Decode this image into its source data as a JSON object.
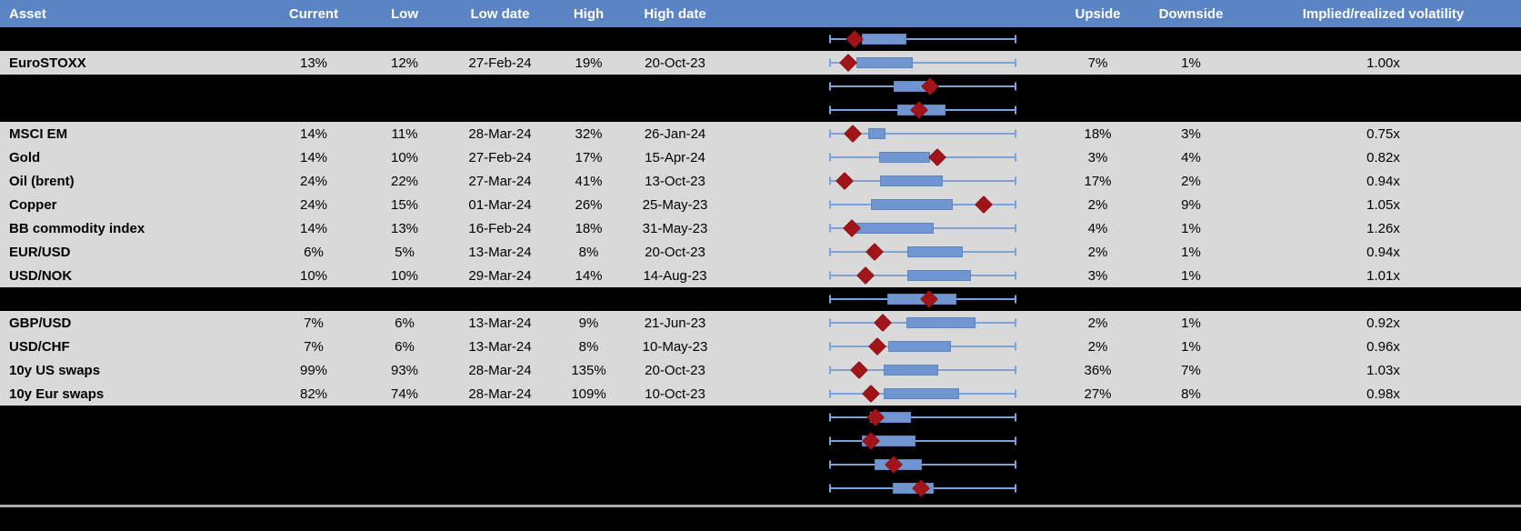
{
  "table": {
    "columns": [
      {
        "key": "asset",
        "label": "Asset"
      },
      {
        "key": "current",
        "label": "Current"
      },
      {
        "key": "low",
        "label": "Low"
      },
      {
        "key": "low_date",
        "label": "Low date"
      },
      {
        "key": "high",
        "label": "High"
      },
      {
        "key": "high_date",
        "label": "High date"
      },
      {
        "key": "range_chart",
        "label": ""
      },
      {
        "key": "upside",
        "label": "Upside"
      },
      {
        "key": "downside",
        "label": "Downside"
      },
      {
        "key": "vol",
        "label": "Implied/realized volatility"
      }
    ],
    "rows": [
      {
        "type": "chart",
        "boxplot": {
          "whisker_lo": 0,
          "box_lo": 17.2,
          "box_hi": 41.2,
          "marker": 13.2,
          "whisker_hi": 100
        }
      },
      {
        "type": "data",
        "asset": "EuroSTOXX",
        "current": "13%",
        "low": "12%",
        "low_date": "27-Feb-24",
        "high": "19%",
        "high_date": "20-Oct-23",
        "upside": "7%",
        "downside": "1%",
        "vol": "1.00x",
        "boxplot": {
          "whisker_lo": 0,
          "box_lo": 14.2,
          "box_hi": 44.6,
          "marker": 9.8,
          "whisker_hi": 100
        }
      },
      {
        "type": "chart",
        "boxplot": {
          "whisker_lo": 0,
          "box_lo": 34.3,
          "box_hi": 56.4,
          "marker": 53.9,
          "whisker_hi": 100
        }
      },
      {
        "type": "chart",
        "boxplot": {
          "whisker_lo": 0,
          "box_lo": 36.3,
          "box_hi": 62.3,
          "marker": 48.0,
          "whisker_hi": 100
        }
      },
      {
        "type": "data",
        "asset": "MSCI EM",
        "current": "14%",
        "low": "11%",
        "low_date": "28-Mar-24",
        "high": "32%",
        "high_date": "26-Jan-24",
        "upside": "18%",
        "downside": "3%",
        "vol": "0.75x",
        "boxplot": {
          "whisker_lo": 0,
          "box_lo": 20.6,
          "box_hi": 29.9,
          "marker": 12.3,
          "whisker_hi": 100
        }
      },
      {
        "type": "data",
        "asset": "Gold",
        "current": "14%",
        "low": "10%",
        "low_date": "27-Feb-24",
        "high": "17%",
        "high_date": "15-Apr-24",
        "upside": "3%",
        "downside": "4%",
        "vol": "0.82x",
        "boxplot": {
          "whisker_lo": 0,
          "box_lo": 26.5,
          "box_hi": 53.9,
          "marker": 57.8,
          "whisker_hi": 100
        }
      },
      {
        "type": "data",
        "asset": "Oil (brent)",
        "current": "24%",
        "low": "22%",
        "low_date": "27-Mar-24",
        "high": "41%",
        "high_date": "13-Oct-23",
        "upside": "17%",
        "downside": "2%",
        "vol": "0.94x",
        "boxplot": {
          "whisker_lo": 0,
          "box_lo": 27.0,
          "box_hi": 60.8,
          "marker": 7.8,
          "whisker_hi": 100
        }
      },
      {
        "type": "data",
        "asset": "Copper",
        "current": "24%",
        "low": "15%",
        "low_date": "01-Mar-24",
        "high": "26%",
        "high_date": "25-May-23",
        "upside": "2%",
        "downside": "9%",
        "vol": "1.05x",
        "boxplot": {
          "whisker_lo": 0,
          "box_lo": 22.1,
          "box_hi": 66.2,
          "marker": 82.8,
          "whisker_hi": 100
        }
      },
      {
        "type": "data",
        "asset": "BB commodity index",
        "current": "14%",
        "low": "13%",
        "low_date": "16-Feb-24",
        "high": "18%",
        "high_date": "31-May-23",
        "upside": "4%",
        "downside": "1%",
        "vol": "1.26x",
        "boxplot": {
          "whisker_lo": 0,
          "box_lo": 12.7,
          "box_hi": 55.9,
          "marker": 11.8,
          "whisker_hi": 100
        }
      },
      {
        "type": "data",
        "asset": "EUR/USD",
        "current": "6%",
        "low": "5%",
        "low_date": "13-Mar-24",
        "high": "8%",
        "high_date": "20-Oct-23",
        "upside": "2%",
        "downside": "1%",
        "vol": "0.94x",
        "boxplot": {
          "whisker_lo": 0,
          "box_lo": 41.7,
          "box_hi": 71.6,
          "marker": 24.0,
          "whisker_hi": 100
        }
      },
      {
        "type": "data",
        "asset": "USD/NOK",
        "current": "10%",
        "low": "10%",
        "low_date": "29-Mar-24",
        "high": "14%",
        "high_date": "14-Aug-23",
        "upside": "3%",
        "downside": "1%",
        "vol": "1.01x",
        "boxplot": {
          "whisker_lo": 0,
          "box_lo": 41.7,
          "box_hi": 76.0,
          "marker": 19.1,
          "whisker_hi": 100
        }
      },
      {
        "type": "chart",
        "boxplot": {
          "whisker_lo": 0,
          "box_lo": 30.9,
          "box_hi": 68.1,
          "marker": 53.4,
          "whisker_hi": 100
        }
      },
      {
        "type": "data",
        "asset": "GBP/USD",
        "current": "7%",
        "low": "6%",
        "low_date": "13-Mar-24",
        "high": "9%",
        "high_date": "21-Jun-23",
        "upside": "2%",
        "downside": "1%",
        "vol": "0.92x",
        "boxplot": {
          "whisker_lo": 0,
          "box_lo": 41.2,
          "box_hi": 78.4,
          "marker": 28.4,
          "whisker_hi": 100
        }
      },
      {
        "type": "data",
        "asset": "USD/CHF",
        "current": "7%",
        "low": "6%",
        "low_date": "13-Mar-24",
        "high": "8%",
        "high_date": "10-May-23",
        "upside": "2%",
        "downside": "1%",
        "vol": "0.96x",
        "boxplot": {
          "whisker_lo": 0,
          "box_lo": 31.4,
          "box_hi": 65.2,
          "marker": 25.5,
          "whisker_hi": 100
        }
      },
      {
        "type": "data",
        "asset": "10y US swaps",
        "current": "99%",
        "low": "93%",
        "low_date": "28-Mar-24",
        "high": "135%",
        "high_date": "20-Oct-23",
        "upside": "36%",
        "downside": "7%",
        "vol": "1.03x",
        "boxplot": {
          "whisker_lo": 0,
          "box_lo": 28.9,
          "box_hi": 58.3,
          "marker": 15.7,
          "whisker_hi": 100
        }
      },
      {
        "type": "data",
        "asset": "10y Eur swaps",
        "current": "82%",
        "low": "74%",
        "low_date": "28-Mar-24",
        "high": "109%",
        "high_date": "10-Oct-23",
        "upside": "27%",
        "downside": "8%",
        "vol": "0.98x",
        "boxplot": {
          "whisker_lo": 0,
          "box_lo": 28.9,
          "box_hi": 69.6,
          "marker": 22.1,
          "whisker_hi": 100
        }
      },
      {
        "type": "chart",
        "boxplot": {
          "whisker_lo": 0,
          "box_lo": 21.6,
          "box_hi": 43.6,
          "marker": 24.5,
          "whisker_hi": 100
        }
      },
      {
        "type": "chart",
        "boxplot": {
          "whisker_lo": 0,
          "box_lo": 17.2,
          "box_hi": 46.1,
          "marker": 22.1,
          "whisker_hi": 100
        }
      },
      {
        "type": "chart",
        "boxplot": {
          "whisker_lo": 0,
          "box_lo": 24.0,
          "box_hi": 49.5,
          "marker": 34.3,
          "whisker_hi": 100
        }
      },
      {
        "type": "chart",
        "boxplot": {
          "whisker_lo": 0,
          "box_lo": 33.8,
          "box_hi": 55.9,
          "marker": 49.0,
          "whisker_hi": 100
        }
      }
    ]
  },
  "colors": {
    "header_bg": "#5b84c4",
    "header_text": "#ffffff",
    "row_bg": "#d9d9d9",
    "black_bg": "#000000",
    "box_fill": "#6f96d0",
    "box_border": "#5e86c2",
    "whisker": "#7da3d8",
    "marker": "#a11519",
    "divider": "#ababab"
  }
}
